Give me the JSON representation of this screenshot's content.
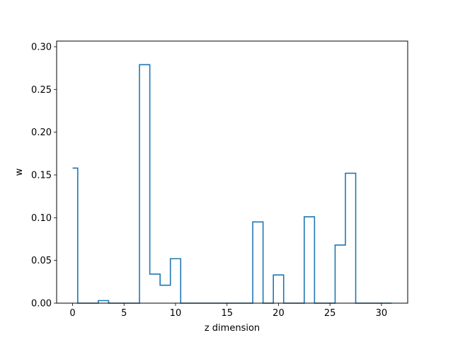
{
  "chart_data": {
    "type": "line",
    "style": "step",
    "xlabel": "z dimension",
    "ylabel": "w",
    "xlim": [
      -1.55,
      32.55
    ],
    "ylim": [
      0,
      0.3066
    ],
    "xticks": [
      0,
      5,
      10,
      15,
      20,
      25,
      30
    ],
    "yticks": [
      0.0,
      0.05,
      0.1,
      0.15,
      0.2,
      0.25,
      0.3
    ],
    "xtick_labels": [
      "0",
      "5",
      "10",
      "15",
      "20",
      "25",
      "30"
    ],
    "ytick_labels": [
      "0.00",
      "0.05",
      "0.10",
      "0.15",
      "0.20",
      "0.25",
      "0.30"
    ],
    "grid": false,
    "line_color": "#1f77b4",
    "x": [
      0,
      1,
      2,
      3,
      4,
      5,
      6,
      7,
      8,
      9,
      10,
      11,
      12,
      13,
      14,
      15,
      16,
      17,
      18,
      19,
      20,
      21,
      22,
      23,
      24,
      25,
      26,
      27,
      28,
      29,
      30,
      31
    ],
    "values": [
      0.158,
      0,
      0,
      0.003,
      0,
      0,
      0,
      0.279,
      0.034,
      0.021,
      0.052,
      0,
      0,
      0,
      0,
      0,
      0,
      0,
      0.095,
      0,
      0.033,
      0,
      0,
      0.101,
      0,
      0,
      0.068,
      0.152,
      0,
      0,
      0,
      0
    ]
  }
}
